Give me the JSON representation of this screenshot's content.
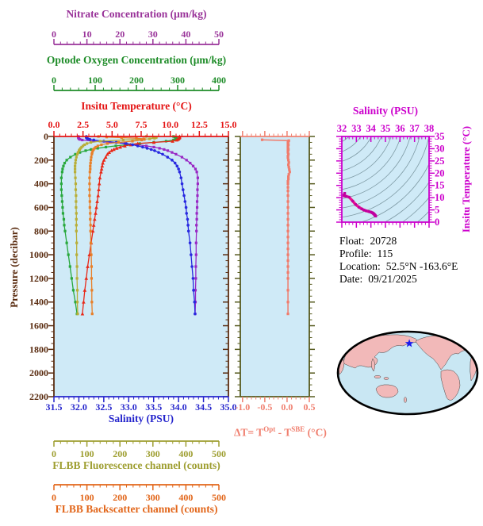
{
  "figure": {
    "background_color": "#ffffff",
    "panel_background_color": "#cfeaf7",
    "titles": {
      "nitrate": "Nitrate Concentration (μm/kg)",
      "oxygen": "Optode Oxygen Concentration (μm/kg)",
      "temperature": "Insitu Temperature (°C)",
      "pressure": "Pressure (decibar)",
      "salinity": "Salinity (PSU)",
      "fluorescence": "FLBB Fluorescence channel (counts)",
      "backscatter": "FLBB Backscatter channel (counts)",
      "ts_salinity": "Salinity (PSU)",
      "ts_temperature": "Insitu Temperature (°C)"
    },
    "delta_title": {
      "p1": "ΔT= T",
      "s1": "Opt",
      "p2": " - T",
      "s2": "SBE",
      "p3": " (°C)"
    },
    "info": {
      "rows": [
        {
          "label": "Float:",
          "value": "20728"
        },
        {
          "label": "Profile:",
          "value": "115"
        },
        {
          "label": "Location:",
          "value": "52.5°N  -163.6°E"
        },
        {
          "label": "Date:",
          "value": "09/21/2025"
        }
      ]
    }
  },
  "chart_data": {
    "main_profile_plot": {
      "type": "line",
      "y_axis": {
        "label": "Pressure (decibar)",
        "min": 0,
        "max": 2200,
        "ticks": [
          "0",
          "200",
          "400",
          "600",
          "800",
          "1000",
          "1200",
          "1400",
          "1600",
          "1800",
          "2000",
          "2200"
        ],
        "minor_step": 50,
        "color": "#5a2c10"
      },
      "x_axes": [
        {
          "id": "nitrate",
          "label": "Nitrate Concentration (μm/kg)",
          "min": 0,
          "max": 50,
          "ticks": [
            "0",
            "10",
            "20",
            "30",
            "40",
            "50"
          ],
          "minor_per_major": 4,
          "color": "#993399",
          "position": "top1"
        },
        {
          "id": "oxygen",
          "label": "Optode Oxygen Concentration (μm/kg)",
          "min": 0,
          "max": 400,
          "ticks": [
            "0",
            "100",
            "200",
            "300",
            "400"
          ],
          "minor_per_major": 4,
          "color": "#1e8c28",
          "position": "top2"
        },
        {
          "id": "temperature",
          "label": "Insitu Temperature (°C)",
          "min": 0,
          "max": 15,
          "ticks": [
            "0.0",
            "2.5",
            "5.0",
            "7.5",
            "10.0",
            "12.5",
            "15.0"
          ],
          "minor_per_major": 4,
          "color": "#e41414",
          "position": "top3"
        },
        {
          "id": "salinity",
          "label": "Salinity (PSU)",
          "min": 31.5,
          "max": 35,
          "ticks": [
            "31.5",
            "32.0",
            "32.5",
            "33.0",
            "33.5",
            "34.0",
            "34.5",
            "35.0"
          ],
          "minor_per_major": 4,
          "color": "#2424cc",
          "position": "bottom1"
        },
        {
          "id": "fluorescence",
          "label": "FLBB Fluorescence channel (counts)",
          "min": 0,
          "max": 500,
          "ticks": [
            "0",
            "100",
            "200",
            "300",
            "400",
            "500"
          ],
          "minor_per_major": 4,
          "color": "#9e9e30",
          "position": "bottom2"
        },
        {
          "id": "backscatter",
          "label": "FLBB Backscatter channel (counts)",
          "min": 0,
          "max": 500,
          "ticks": [
            "0",
            "100",
            "200",
            "300",
            "400",
            "500"
          ],
          "minor_per_major": 4,
          "color": "#e2661a",
          "position": "bottom3"
        }
      ],
      "pressure_levels": [
        0,
        5,
        10,
        15,
        20,
        25,
        30,
        40,
        50,
        60,
        70,
        80,
        90,
        100,
        110,
        120,
        135,
        150,
        175,
        200,
        225,
        250,
        275,
        300,
        350,
        400,
        450,
        500,
        550,
        600,
        650,
        700,
        750,
        800,
        900,
        1000,
        1100,
        1200,
        1300,
        1400,
        1500
      ],
      "series": [
        {
          "name": "nitrate",
          "axis": "nitrate",
          "color": "#9928c4",
          "marker": "square",
          "values": [
            7.4,
            7.4,
            7.4,
            7.5,
            7.6,
            7.9,
            8.6,
            12,
            17,
            21.5,
            25,
            28,
            30.3,
            32,
            33.4,
            34.5,
            35.8,
            37,
            38.8,
            40.2,
            41.3,
            42.2,
            42.9,
            43.3,
            43.6,
            43.6,
            43.5,
            43.5,
            43.4,
            43.4,
            43.3,
            43.3,
            43.2,
            43.2,
            43.1,
            43.1,
            43,
            43,
            42.9,
            42.9,
            42.8
          ]
        },
        {
          "name": "oxygen",
          "axis": "oxygen",
          "color": "#28a83c",
          "marker": "square",
          "values": [
            290,
            293,
            296,
            297,
            297,
            295,
            290,
            272,
            242,
            208,
            178,
            150,
            126,
            106,
            90,
            77,
            63,
            52,
            40,
            31,
            26,
            23,
            21,
            20,
            18,
            18,
            18,
            19,
            20,
            21,
            22,
            24,
            25,
            27,
            31,
            35,
            39,
            43,
            47,
            52,
            56
          ]
        },
        {
          "name": "temperature",
          "axis": "temperature",
          "color": "#e82818",
          "marker": "triangle",
          "values": [
            10.8,
            10.8,
            10.8,
            10.75,
            10.7,
            10.65,
            10.55,
            10.2,
            8.6,
            7.2,
            6.6,
            6.1,
            5.7,
            5.4,
            5.15,
            4.95,
            4.75,
            4.6,
            4.45,
            4.3,
            4.2,
            4.15,
            4.1,
            4.05,
            3.95,
            3.9,
            3.85,
            3.8,
            3.72,
            3.65,
            3.58,
            3.5,
            3.42,
            3.35,
            3.2,
            3.05,
            2.9,
            2.78,
            2.65,
            2.55,
            2.45
          ]
        },
        {
          "name": "salinity",
          "axis": "salinity",
          "color": "#2828e0",
          "marker": "circle",
          "values": [
            32.15,
            32.15,
            32.15,
            32.16,
            32.18,
            32.22,
            32.3,
            32.5,
            32.75,
            32.95,
            33.08,
            33.18,
            33.28,
            33.37,
            33.45,
            33.52,
            33.6,
            33.68,
            33.78,
            33.87,
            33.93,
            33.97,
            34.0,
            34.02,
            34.05,
            34.07,
            34.09,
            34.11,
            34.13,
            34.15,
            34.16,
            34.18,
            34.19,
            34.2,
            34.23,
            34.25,
            34.27,
            34.29,
            34.3,
            34.32,
            34.33
          ]
        },
        {
          "name": "fluorescence",
          "axis": "fluorescence",
          "color": "#b8ae38",
          "marker": "square",
          "values": [
            280,
            300,
            310,
            305,
            290,
            255,
            210,
            140,
            112,
            100,
            93,
            88,
            84,
            81,
            78,
            76,
            73,
            71,
            68,
            66,
            65,
            64,
            64,
            64,
            65,
            66,
            66,
            67,
            67,
            67,
            68,
            68,
            68,
            68,
            69,
            69,
            70,
            70,
            71,
            71,
            72
          ]
        },
        {
          "name": "backscatter",
          "axis": "backscatter",
          "color": "#e87f28",
          "marker": "square",
          "values": [
            135,
            160,
            205,
            250,
            272,
            274,
            266,
            238,
            196,
            162,
            144,
            133,
            127,
            123,
            120,
            118,
            116,
            115,
            113,
            112,
            111,
            110,
            110,
            109,
            108,
            108,
            108,
            108,
            109,
            109,
            110,
            110,
            111,
            111,
            112,
            113,
            114,
            114,
            115,
            115,
            116
          ]
        }
      ]
    },
    "delta_t_plot": {
      "type": "line",
      "x_axis": {
        "label": "ΔT= T^Opt - T^SBE (°C)",
        "min": -1.05,
        "max": 0.5,
        "ticks": [
          "-1.0",
          "-0.5",
          "0.0",
          "0.5"
        ],
        "minor_per_major": 4,
        "color": "#f08070"
      },
      "y_axis": {
        "min": 0,
        "max": 2200,
        "frame_color": "#565a1e"
      },
      "series": [
        {
          "name": "delta-t",
          "color": "#f07c6c",
          "marker": "square",
          "points": [
            [
              28,
              -0.56
            ],
            [
              35,
              0.04
            ],
            [
              40,
              0.03
            ],
            [
              50,
              0.02
            ],
            [
              60,
              0.02
            ],
            [
              70,
              0.03
            ],
            [
              80,
              0.02
            ],
            [
              90,
              0.02
            ],
            [
              100,
              0.02
            ],
            [
              110,
              0.03
            ],
            [
              120,
              0.02
            ],
            [
              135,
              0.02
            ],
            [
              150,
              0.03
            ],
            [
              165,
              0.02
            ],
            [
              180,
              0.02
            ],
            [
              200,
              0.03
            ],
            [
              220,
              0.04
            ],
            [
              240,
              0.03
            ],
            [
              260,
              0.04
            ],
            [
              280,
              0.05
            ],
            [
              300,
              0.06
            ],
            [
              320,
              0.04
            ],
            [
              340,
              0.03
            ],
            [
              360,
              0.03
            ],
            [
              380,
              0.02
            ],
            [
              400,
              0.02
            ],
            [
              430,
              0.02
            ],
            [
              460,
              0.02
            ],
            [
              500,
              0.02
            ],
            [
              550,
              0.02
            ],
            [
              600,
              0.02
            ],
            [
              650,
              0.02
            ],
            [
              700,
              0.02
            ],
            [
              750,
              0.02
            ],
            [
              800,
              0.02
            ],
            [
              850,
              0.02
            ],
            [
              900,
              0.02
            ],
            [
              950,
              0.02
            ],
            [
              1000,
              0.02
            ],
            [
              1050,
              0.02
            ],
            [
              1100,
              0.02
            ],
            [
              1150,
              0.02
            ],
            [
              1200,
              0.02
            ],
            [
              1300,
              0.02
            ],
            [
              1400,
              0.02
            ],
            [
              1500,
              0.02
            ]
          ]
        }
      ]
    },
    "ts_diagram": {
      "type": "line",
      "x_axis": {
        "label": "Salinity (PSU)",
        "min": 32,
        "max": 38,
        "ticks": [
          "32",
          "33",
          "34",
          "35",
          "36",
          "37",
          "38"
        ],
        "minor_per_major": 3,
        "color": "#cc00cc"
      },
      "y_axis": {
        "label": "Insitu Temperature (°C)",
        "min": 0,
        "max": 35,
        "ticks": [
          "0",
          "5",
          "10",
          "15",
          "20",
          "25",
          "30",
          "35"
        ],
        "minor_per_major": 4,
        "color": "#cc00cc"
      },
      "contours": {
        "style": "isopycnal-arcs",
        "color": "#7d99a3"
      },
      "series": [
        {
          "name": "t-s-curve",
          "color": "#f0148c",
          "marker_color": "#c000a0",
          "points": [
            [
              32.2,
              11.8
            ],
            [
              32.16,
              11.2
            ],
            [
              32.15,
              10.8
            ],
            [
              32.18,
              10.7
            ],
            [
              32.3,
              10.55
            ],
            [
              32.5,
              10.2
            ],
            [
              32.75,
              8.6
            ],
            [
              32.95,
              7.2
            ],
            [
              33.18,
              6.1
            ],
            [
              33.37,
              5.4
            ],
            [
              33.52,
              4.95
            ],
            [
              33.68,
              4.6
            ],
            [
              33.87,
              4.3
            ],
            [
              33.97,
              4.15
            ],
            [
              34.02,
              4.05
            ],
            [
              34.07,
              3.9
            ],
            [
              34.11,
              3.8
            ],
            [
              34.15,
              3.65
            ],
            [
              34.18,
              3.5
            ],
            [
              34.2,
              3.35
            ],
            [
              34.23,
              3.2
            ],
            [
              34.25,
              3.05
            ],
            [
              34.27,
              2.9
            ],
            [
              34.29,
              2.78
            ],
            [
              34.3,
              2.65
            ],
            [
              34.32,
              2.55
            ],
            [
              34.33,
              2.45
            ]
          ]
        }
      ]
    },
    "world_map": {
      "ocean_color": "#c9e7f3",
      "land_color": "#f2b9b9",
      "outline_color": "#000000",
      "star_marker": {
        "color": "#1a1aee",
        "x_frac": 0.512,
        "y_frac": 0.137
      }
    }
  }
}
